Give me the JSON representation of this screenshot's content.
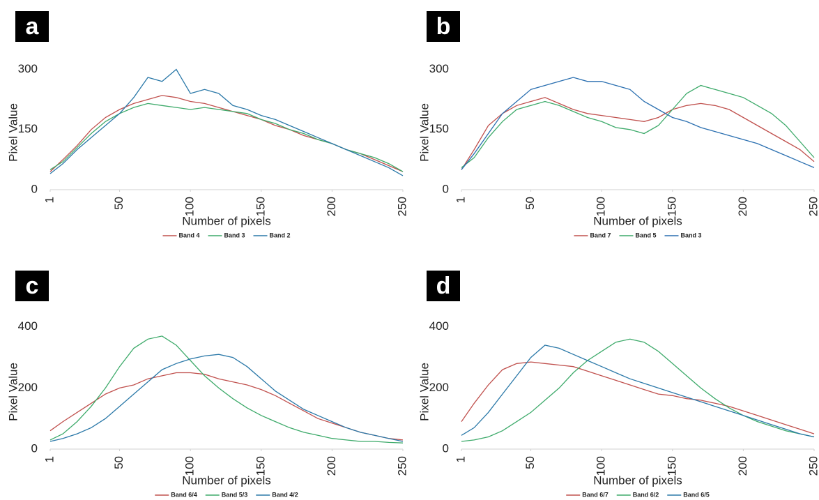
{
  "chart_data": [
    {
      "type": "line",
      "label": "a",
      "ylabel": "Pixel Value",
      "xlabel": "Number of pixels",
      "xlim": [
        1,
        250
      ],
      "xticks": [
        1,
        50,
        100,
        150,
        200,
        250
      ],
      "ylim": [
        0,
        320
      ],
      "yticks": [
        0,
        150,
        300
      ],
      "x": [
        1,
        10,
        20,
        30,
        40,
        50,
        60,
        70,
        80,
        90,
        100,
        110,
        120,
        130,
        140,
        150,
        160,
        170,
        180,
        190,
        200,
        210,
        220,
        230,
        240,
        250
      ],
      "series": [
        {
          "name": "Band 4",
          "color": "#c0504d",
          "values": [
            45,
            75,
            110,
            150,
            180,
            200,
            215,
            225,
            235,
            230,
            220,
            215,
            205,
            195,
            185,
            175,
            160,
            150,
            135,
            125,
            115,
            100,
            90,
            75,
            60,
            45
          ]
        },
        {
          "name": "Band 3",
          "color": "#3daa6a",
          "values": [
            50,
            70,
            105,
            140,
            170,
            190,
            205,
            215,
            210,
            205,
            200,
            205,
            200,
            195,
            190,
            175,
            165,
            150,
            140,
            125,
            115,
            100,
            90,
            80,
            65,
            45
          ]
        },
        {
          "name": "Band 2",
          "color": "#2a78a8",
          "values": [
            40,
            65,
            100,
            130,
            160,
            190,
            230,
            280,
            270,
            300,
            240,
            250,
            240,
            210,
            200,
            185,
            175,
            160,
            145,
            130,
            115,
            100,
            85,
            70,
            55,
            35
          ]
        }
      ]
    },
    {
      "type": "line",
      "label": "b",
      "ylabel": "Pixel Value",
      "xlabel": "Number of pixels",
      "xlim": [
        1,
        250
      ],
      "xticks": [
        1,
        50,
        100,
        150,
        200,
        250
      ],
      "ylim": [
        0,
        320
      ],
      "yticks": [
        0,
        150,
        300
      ],
      "x": [
        1,
        10,
        20,
        30,
        40,
        50,
        60,
        70,
        80,
        90,
        100,
        110,
        120,
        130,
        140,
        150,
        160,
        170,
        180,
        190,
        200,
        210,
        220,
        230,
        240,
        250
      ],
      "series": [
        {
          "name": "Band 7",
          "color": "#c0504d",
          "values": [
            50,
            100,
            160,
            190,
            210,
            220,
            230,
            215,
            200,
            190,
            185,
            180,
            175,
            170,
            180,
            200,
            210,
            215,
            210,
            200,
            180,
            160,
            140,
            120,
            100,
            70
          ]
        },
        {
          "name": "Band 5",
          "color": "#3daa6a",
          "values": [
            55,
            80,
            130,
            170,
            200,
            210,
            220,
            210,
            195,
            180,
            170,
            155,
            150,
            140,
            160,
            200,
            240,
            260,
            250,
            240,
            230,
            210,
            190,
            160,
            120,
            80
          ]
        },
        {
          "name": "Band 3",
          "color": "#2a6fb0",
          "values": [
            50,
            90,
            140,
            190,
            220,
            250,
            260,
            270,
            280,
            270,
            270,
            260,
            250,
            220,
            200,
            180,
            170,
            155,
            145,
            135,
            125,
            115,
            100,
            85,
            70,
            55
          ]
        }
      ]
    },
    {
      "type": "line",
      "label": "c",
      "ylabel": "Pixel Value",
      "xlabel": "Number of pixels",
      "xlim": [
        1,
        250
      ],
      "xticks": [
        1,
        50,
        100,
        150,
        200,
        250
      ],
      "ylim": [
        0,
        420
      ],
      "yticks": [
        0,
        200,
        400
      ],
      "x": [
        1,
        10,
        20,
        30,
        40,
        50,
        60,
        70,
        80,
        90,
        100,
        110,
        120,
        130,
        140,
        150,
        160,
        170,
        180,
        190,
        200,
        210,
        220,
        230,
        240,
        250
      ],
      "series": [
        {
          "name": "Band 6/4",
          "color": "#c0504d",
          "values": [
            60,
            90,
            120,
            150,
            180,
            200,
            210,
            230,
            240,
            250,
            250,
            245,
            230,
            220,
            210,
            195,
            175,
            150,
            125,
            100,
            85,
            70,
            55,
            45,
            35,
            30
          ]
        },
        {
          "name": "Band 5/3",
          "color": "#3daa6a",
          "values": [
            30,
            50,
            90,
            140,
            200,
            270,
            330,
            360,
            370,
            340,
            290,
            240,
            200,
            165,
            135,
            110,
            90,
            70,
            55,
            45,
            35,
            30,
            25,
            25,
            22,
            20
          ]
        },
        {
          "name": "Band 4/2",
          "color": "#2a78a8",
          "values": [
            25,
            35,
            50,
            70,
            100,
            140,
            180,
            220,
            260,
            280,
            295,
            305,
            310,
            300,
            270,
            230,
            190,
            160,
            130,
            110,
            90,
            70,
            55,
            45,
            35,
            25
          ]
        }
      ]
    },
    {
      "type": "line",
      "label": "d",
      "ylabel": "Pixel Value",
      "xlabel": "Number of pixels",
      "xlim": [
        1,
        250
      ],
      "xticks": [
        1,
        50,
        100,
        150,
        200,
        250
      ],
      "ylim": [
        0,
        420
      ],
      "yticks": [
        0,
        200,
        400
      ],
      "x": [
        1,
        10,
        20,
        30,
        40,
        50,
        60,
        70,
        80,
        90,
        100,
        110,
        120,
        130,
        140,
        150,
        160,
        170,
        180,
        190,
        200,
        210,
        220,
        230,
        240,
        250
      ],
      "series": [
        {
          "name": "Band 6/7",
          "color": "#c0504d",
          "values": [
            90,
            150,
            210,
            260,
            280,
            285,
            280,
            275,
            270,
            255,
            240,
            225,
            210,
            195,
            180,
            175,
            165,
            160,
            150,
            140,
            125,
            110,
            95,
            80,
            65,
            50
          ]
        },
        {
          "name": "Band 6/2",
          "color": "#3daa6a",
          "values": [
            25,
            30,
            40,
            60,
            90,
            120,
            160,
            200,
            250,
            290,
            320,
            350,
            360,
            350,
            320,
            280,
            240,
            200,
            165,
            135,
            110,
            90,
            75,
            60,
            50,
            40
          ]
        },
        {
          "name": "Band 6/5",
          "color": "#2a78a8",
          "values": [
            45,
            70,
            120,
            180,
            240,
            300,
            340,
            330,
            310,
            290,
            270,
            250,
            230,
            215,
            200,
            185,
            170,
            155,
            140,
            125,
            110,
            95,
            80,
            65,
            50,
            40
          ]
        }
      ]
    }
  ]
}
